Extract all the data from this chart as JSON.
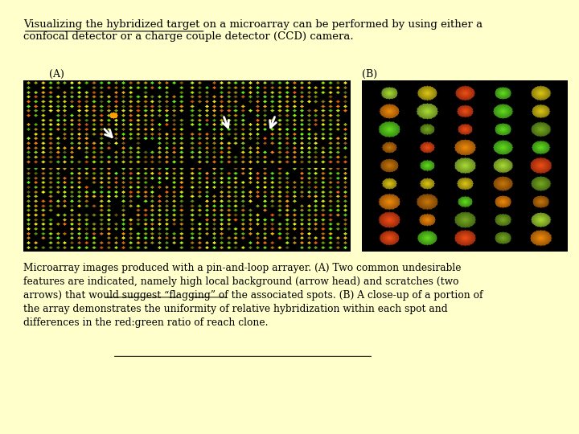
{
  "bg_color": "#ffffcc",
  "title_line1": "Visualizing the hybridized target on a microarray can be performed by using either a",
  "title_line2": "confocal detector or a charge couple detector (CCD) camera.",
  "title_underline_phrase": "Visualizing the hybridized target",
  "label_A": "(A)",
  "label_B": "(B)",
  "caption_text": "Microarray images produced with a pin-and-loop arrayer. (A) Two common undesirable\nfeatures are indicated, namely high local background (arrow head) and scratches (two\narrows) that would suggest “flagging” of the associated spots. (B) A close-up of a portion of\nthe array demonstrates the uniformity of relative hybridization within each spot and\ndifferences in the red:green ratio of reach clone.",
  "font_family": "serif",
  "title_fontsize": 9.5,
  "caption_fontsize": 8.8,
  "label_fontsize": 9
}
